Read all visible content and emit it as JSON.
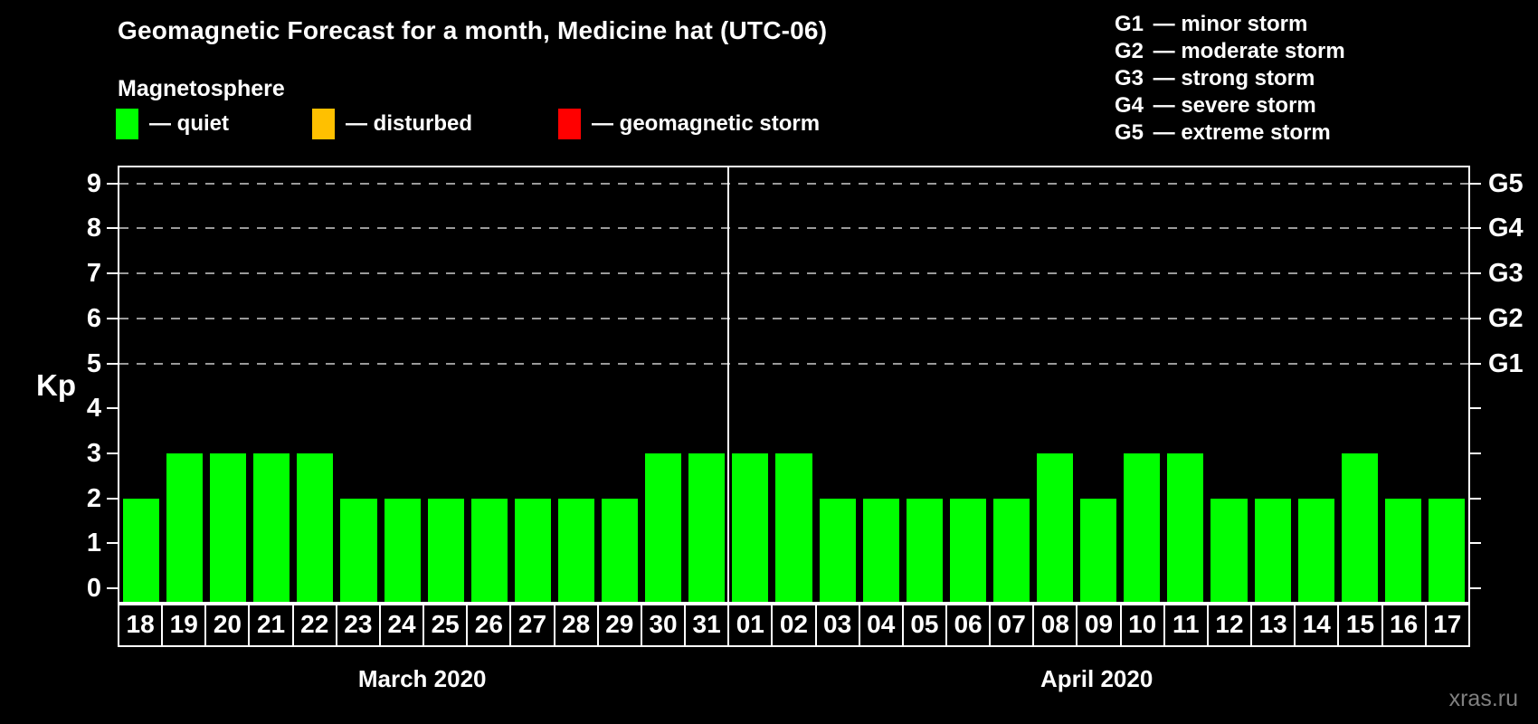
{
  "header": {
    "title": "Geomagnetic Forecast for a month, Medicine hat (UTC-06)"
  },
  "legend": {
    "heading": "Magnetosphere",
    "items": [
      {
        "name": "quiet",
        "label": "— quiet",
        "color": "#00ff00"
      },
      {
        "name": "disturbed",
        "label": "— disturbed",
        "color": "#ffc000"
      },
      {
        "name": "storm",
        "label": "— geomagnetic storm",
        "color": "#ff0000"
      }
    ]
  },
  "g_legend": [
    {
      "code": "G1",
      "label": "— minor storm"
    },
    {
      "code": "G2",
      "label": "— moderate storm"
    },
    {
      "code": "G3",
      "label": "— strong storm"
    },
    {
      "code": "G4",
      "label": "— severe storm"
    },
    {
      "code": "G5",
      "label": "— extreme storm"
    }
  ],
  "axes": {
    "left_label": "Kp",
    "left_ticks": [
      "0",
      "1",
      "2",
      "3",
      "4",
      "5",
      "6",
      "7",
      "8",
      "9"
    ],
    "right_labels": [
      {
        "kp": 5,
        "label": "G1"
      },
      {
        "kp": 6,
        "label": "G2"
      },
      {
        "kp": 7,
        "label": "G3"
      },
      {
        "kp": 8,
        "label": "G4"
      },
      {
        "kp": 9,
        "label": "G5"
      }
    ]
  },
  "watermark": "xras.ru",
  "chart_data": {
    "type": "bar",
    "title": "Geomagnetic Forecast for a month, Medicine hat (UTC-06)",
    "xlabel": "",
    "ylabel": "Kp",
    "ylim": [
      0,
      9
    ],
    "grid": "horizontal dashed lines at Kp 5,6,7,8,9 (G1–G5)",
    "legend_position": "top-left",
    "bar_color": "#00ff00",
    "bar_status_all": "quiet",
    "status_colors": {
      "quiet": "#00ff00",
      "disturbed": "#ffc000",
      "storm": "#ff0000"
    },
    "months": [
      {
        "label": "March 2020",
        "days": [
          "18",
          "19",
          "20",
          "21",
          "22",
          "23",
          "24",
          "25",
          "26",
          "27",
          "28",
          "29",
          "30",
          "31"
        ],
        "values": [
          2,
          3,
          3,
          3,
          3,
          2,
          2,
          2,
          2,
          2,
          2,
          2,
          3,
          3
        ]
      },
      {
        "label": "April 2020",
        "days": [
          "01",
          "02",
          "03",
          "04",
          "05",
          "06",
          "07",
          "08",
          "09",
          "10",
          "11",
          "12",
          "13",
          "14",
          "15",
          "16",
          "17"
        ],
        "values": [
          3,
          3,
          2,
          2,
          2,
          2,
          2,
          3,
          2,
          3,
          3,
          2,
          2,
          2,
          3,
          2,
          2
        ]
      }
    ]
  }
}
